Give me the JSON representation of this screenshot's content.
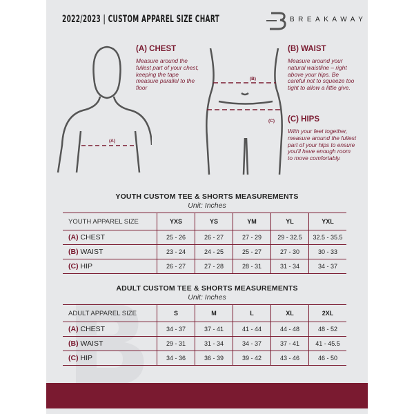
{
  "header": {
    "title": "2022/2023  |  CUSTOM APPAREL SIZE CHART",
    "brand": "BREAKAWAY"
  },
  "measures": {
    "chest": {
      "heading": "(A) CHEST",
      "desc": "Measure around the fullest part of your chest, keeping the tape measure parallel to the floor",
      "marker": "(A)"
    },
    "waist": {
      "heading": "(B) WAIST",
      "desc": "Measure around your natural waistline – right above your hips. Be careful not to squeeze too tight to allow a little give.",
      "marker": "(B)"
    },
    "hips": {
      "heading": "(C) HIPS",
      "desc": "With your feet together, measure around the fullest part of your hips to ensure you'll have enough room to move comfortably.",
      "marker": "(C)"
    }
  },
  "youth": {
    "title": "YOUTH CUSTOM TEE & SHORTS MEASUREMENTS",
    "unit": "Unit: Inches",
    "header": [
      "YOUTH APPAREL SIZE",
      "YXS",
      "YS",
      "YM",
      "YL",
      "YXL"
    ],
    "rows": [
      {
        "letter": "(A)",
        "name": "CHEST",
        "values": [
          "25 - 26",
          "26 - 27",
          "27 - 29",
          "29 - 32.5",
          "32.5 - 35.5"
        ]
      },
      {
        "letter": "(B)",
        "name": "WAIST",
        "values": [
          "23 - 24",
          "24 - 25",
          "25 - 27",
          "27 - 30",
          "30 - 33"
        ]
      },
      {
        "letter": "(C)",
        "name": "HIP",
        "values": [
          "26 - 27",
          "27 - 28",
          "28 - 31",
          "31 - 34",
          "34 - 37"
        ]
      }
    ]
  },
  "adult": {
    "title": "ADULT CUSTOM TEE & SHORTS MEASUREMENTS",
    "unit": "Unit: Inches",
    "header": [
      "ADULT APPAREL SIZE",
      "S",
      "M",
      "L",
      "XL",
      "2XL"
    ],
    "rows": [
      {
        "letter": "(A)",
        "name": "CHEST",
        "values": [
          "34 - 37",
          "37 - 41",
          "41 - 44",
          "44 - 48",
          "48 - 52"
        ]
      },
      {
        "letter": "(B)",
        "name": "WAIST",
        "values": [
          "29 - 31",
          "31 - 34",
          "34 - 37",
          "37 - 41",
          "41 - 45.5"
        ]
      },
      {
        "letter": "(C)",
        "name": "HIP",
        "values": [
          "34 - 36",
          "36 - 39",
          "39 - 42",
          "43 - 46",
          "46 - 50"
        ]
      }
    ]
  },
  "colors": {
    "accent": "#7a1a30",
    "panel": "#e7e8ea"
  }
}
